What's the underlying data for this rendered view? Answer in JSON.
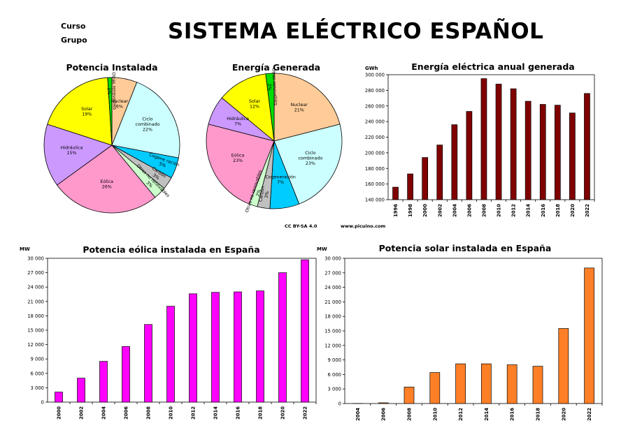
{
  "header": {
    "course_label": "Curso",
    "group_label": "Grupo",
    "title": "SISTEMA ELÉCTRICO ESPAÑOL"
  },
  "credits": {
    "license": "CC BY-SA 4.0",
    "website": "www.picuino.com"
  },
  "colors": {
    "nuclear": "#ffcc99",
    "ciclo": "#ccffff",
    "cogeneracion": "#00ccff",
    "carbon": "#c0c0c0",
    "otras_no_renovables": "#ccffcc",
    "eolica": "#ff99cc",
    "hidraulica": "#cc99ff",
    "solar": "#ffff00",
    "otras_renovables": "#00dd00",
    "annual_bar": "#800000",
    "wind_bar": "#ff00ff",
    "solar_bar": "#ff7f27"
  },
  "chart_data": [
    {
      "type": "pie",
      "title": "Potencia Instalada",
      "slices": [
        {
          "label": "Nuclear",
          "value": 6,
          "display": "6%",
          "color_key": "nuclear"
        },
        {
          "label": "Ciclo combinado",
          "value": 22,
          "display": "22%",
          "color_key": "ciclo"
        },
        {
          "label": "Cogene ración",
          "value": 5,
          "display": "5%",
          "color_key": "cogeneracion"
        },
        {
          "label": "Carbón",
          "value": 3,
          "display": "3%",
          "color_key": "carbon"
        },
        {
          "label": "Otras no renovables",
          "value": 3,
          "display": "3%",
          "color_key": "otras_no_renovables"
        },
        {
          "label": "Eólica",
          "value": 26,
          "display": "26%",
          "color_key": "eolica"
        },
        {
          "label": "Hidráulica",
          "value": 15,
          "display": "15%",
          "color_key": "hidraulica"
        },
        {
          "label": "Solar",
          "value": 19,
          "display": "19%",
          "color_key": "solar"
        },
        {
          "label": "Otras renovables",
          "value": 1,
          "display": "1%",
          "color_key": "otras_renovables"
        }
      ]
    },
    {
      "type": "pie",
      "title": "Energía Generada",
      "slices": [
        {
          "label": "Nuclear",
          "value": 21,
          "display": "21%",
          "color_key": "nuclear"
        },
        {
          "label": "Ciclo combinado",
          "value": 23,
          "display": "23%",
          "color_key": "ciclo"
        },
        {
          "label": "Cogeneración",
          "value": 7,
          "display": "7%",
          "color_key": "cogeneracion"
        },
        {
          "label": "Carbón",
          "value": 3,
          "display": "3%",
          "color_key": "carbon"
        },
        {
          "label": "Otras no renovables",
          "value": 2,
          "display": "2%",
          "color_key": "otras_no_renovables"
        },
        {
          "label": "Eólica",
          "value": 23,
          "display": "23%",
          "color_key": "eolica"
        },
        {
          "label": "Hidráulica",
          "value": 7,
          "display": "7%",
          "color_key": "hidraulica"
        },
        {
          "label": "Solar",
          "value": 12,
          "display": "12%",
          "color_key": "solar"
        },
        {
          "label": "Otras renovables",
          "value": 2,
          "display": "2%",
          "color_key": "otras_renovables"
        }
      ]
    },
    {
      "type": "bar",
      "title": "Energía eléctrica anual generada",
      "ylabel": "GWh",
      "ylim": [
        140000,
        300000
      ],
      "yticks": [
        140000,
        160000,
        180000,
        200000,
        220000,
        240000,
        260000,
        280000,
        300000
      ],
      "ytick_labels": [
        "140 000",
        "160 000",
        "180 000",
        "200 000",
        "220 000",
        "240 000",
        "260 000",
        "280 000",
        "300 000"
      ],
      "categories": [
        "1996",
        "1998",
        "2000",
        "2002",
        "2004",
        "2006",
        "2008",
        "2010",
        "2012",
        "2014",
        "2016",
        "2018",
        "2020",
        "2022"
      ],
      "values": [
        156000,
        173000,
        194000,
        210000,
        236000,
        253000,
        295000,
        288000,
        282000,
        266000,
        262000,
        261000,
        251000,
        276000
      ],
      "color_key": "annual_bar"
    },
    {
      "type": "bar",
      "title": "Potencia eólica instalada en España",
      "ylabel": "MW",
      "ylim": [
        0,
        30000
      ],
      "yticks": [
        0,
        3000,
        6000,
        9000,
        12000,
        15000,
        18000,
        21000,
        24000,
        27000,
        30000
      ],
      "ytick_labels": [
        "0",
        "3 000",
        "6 000",
        "9 000",
        "12 000",
        "15 000",
        "18 000",
        "21 000",
        "24 000",
        "27 000",
        "30 000"
      ],
      "categories": [
        "2000",
        "2002",
        "2004",
        "2006",
        "2008",
        "2010",
        "2012",
        "2014",
        "2016",
        "2018",
        "2020",
        "2022"
      ],
      "values": [
        2100,
        5000,
        8500,
        11600,
        16200,
        20000,
        22600,
        22900,
        23000,
        23200,
        27000,
        29700
      ],
      "color_key": "wind_bar"
    },
    {
      "type": "bar",
      "title": "Potencia solar instalada en España",
      "ylabel": "MW",
      "ylim": [
        0,
        30000
      ],
      "yticks": [
        0,
        3000,
        6000,
        9000,
        12000,
        15000,
        18000,
        21000,
        24000,
        27000,
        30000
      ],
      "ytick_labels": [
        "0",
        "3 000",
        "6 000",
        "9 000",
        "12 000",
        "15 000",
        "18 000",
        "21 000",
        "24 000",
        "27 000",
        "30 000"
      ],
      "categories": [
        "2004",
        "2006",
        "2008",
        "2010",
        "2012",
        "2014",
        "2016",
        "2018",
        "2020",
        "2022"
      ],
      "values": [
        20,
        150,
        3400,
        6400,
        8200,
        8200,
        8000,
        7700,
        15500,
        28000
      ],
      "color_key": "solar_bar"
    }
  ]
}
